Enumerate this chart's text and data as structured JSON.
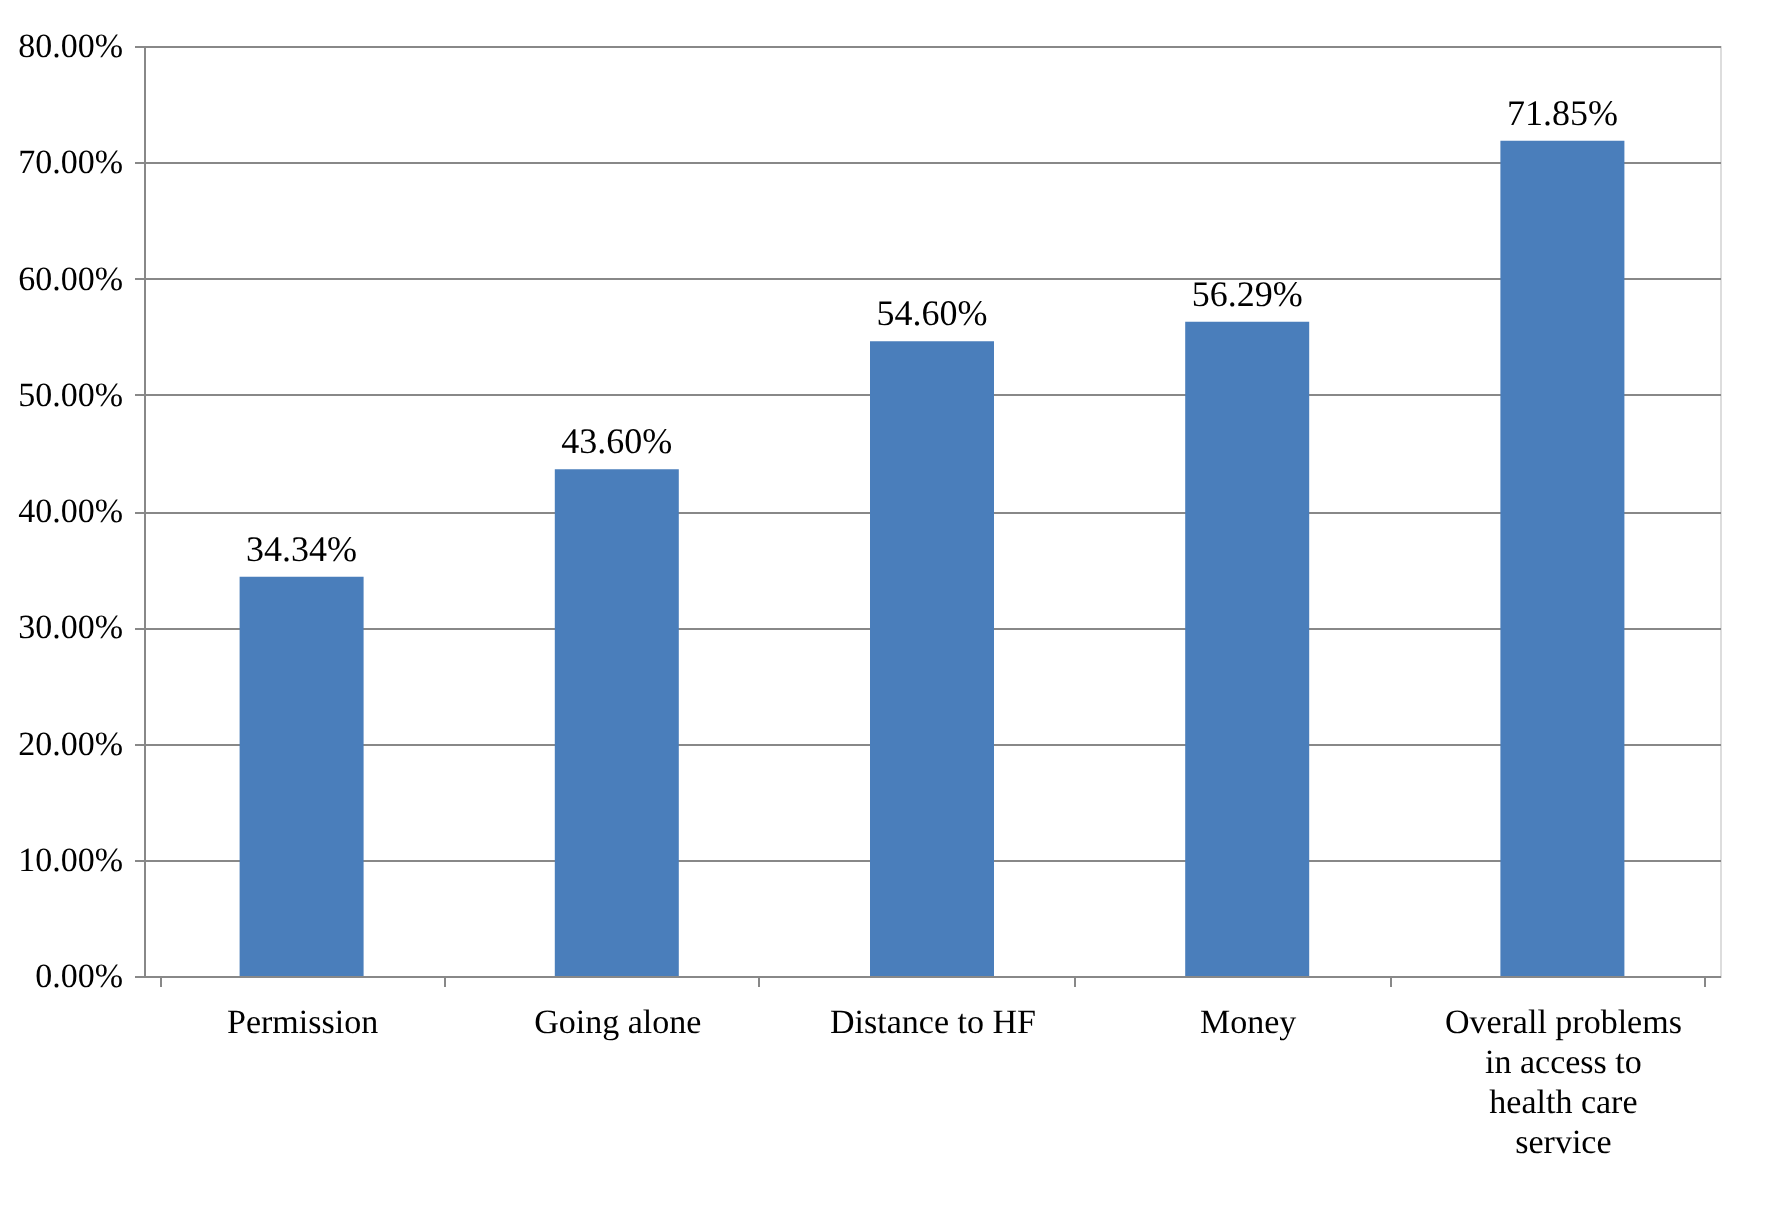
{
  "chart_data": {
    "type": "bar",
    "categories": [
      "Permission",
      "Going alone",
      "Distance to HF",
      "Money",
      "Overall problems in access to health care service"
    ],
    "values": [
      34.34,
      43.6,
      54.6,
      56.29,
      71.85
    ],
    "value_labels": [
      "34.34%",
      "43.60%",
      "54.60%",
      "56.29%",
      "71.85%"
    ],
    "color": "#4a7ebb",
    "ylim": [
      0,
      80
    ],
    "yticks": [
      {
        "value": 0,
        "label": "0.00%"
      },
      {
        "value": 10,
        "label": "10.00%"
      },
      {
        "value": 20,
        "label": "20.00%"
      },
      {
        "value": 30,
        "label": "30.00%"
      },
      {
        "value": 40,
        "label": "40.00%"
      },
      {
        "value": 50,
        "label": "50.00%"
      },
      {
        "value": 60,
        "label": "60.00%"
      },
      {
        "value": 70,
        "label": "70.00%"
      },
      {
        "value": 80,
        "label": "80.00%"
      }
    ],
    "grid": "y"
  }
}
